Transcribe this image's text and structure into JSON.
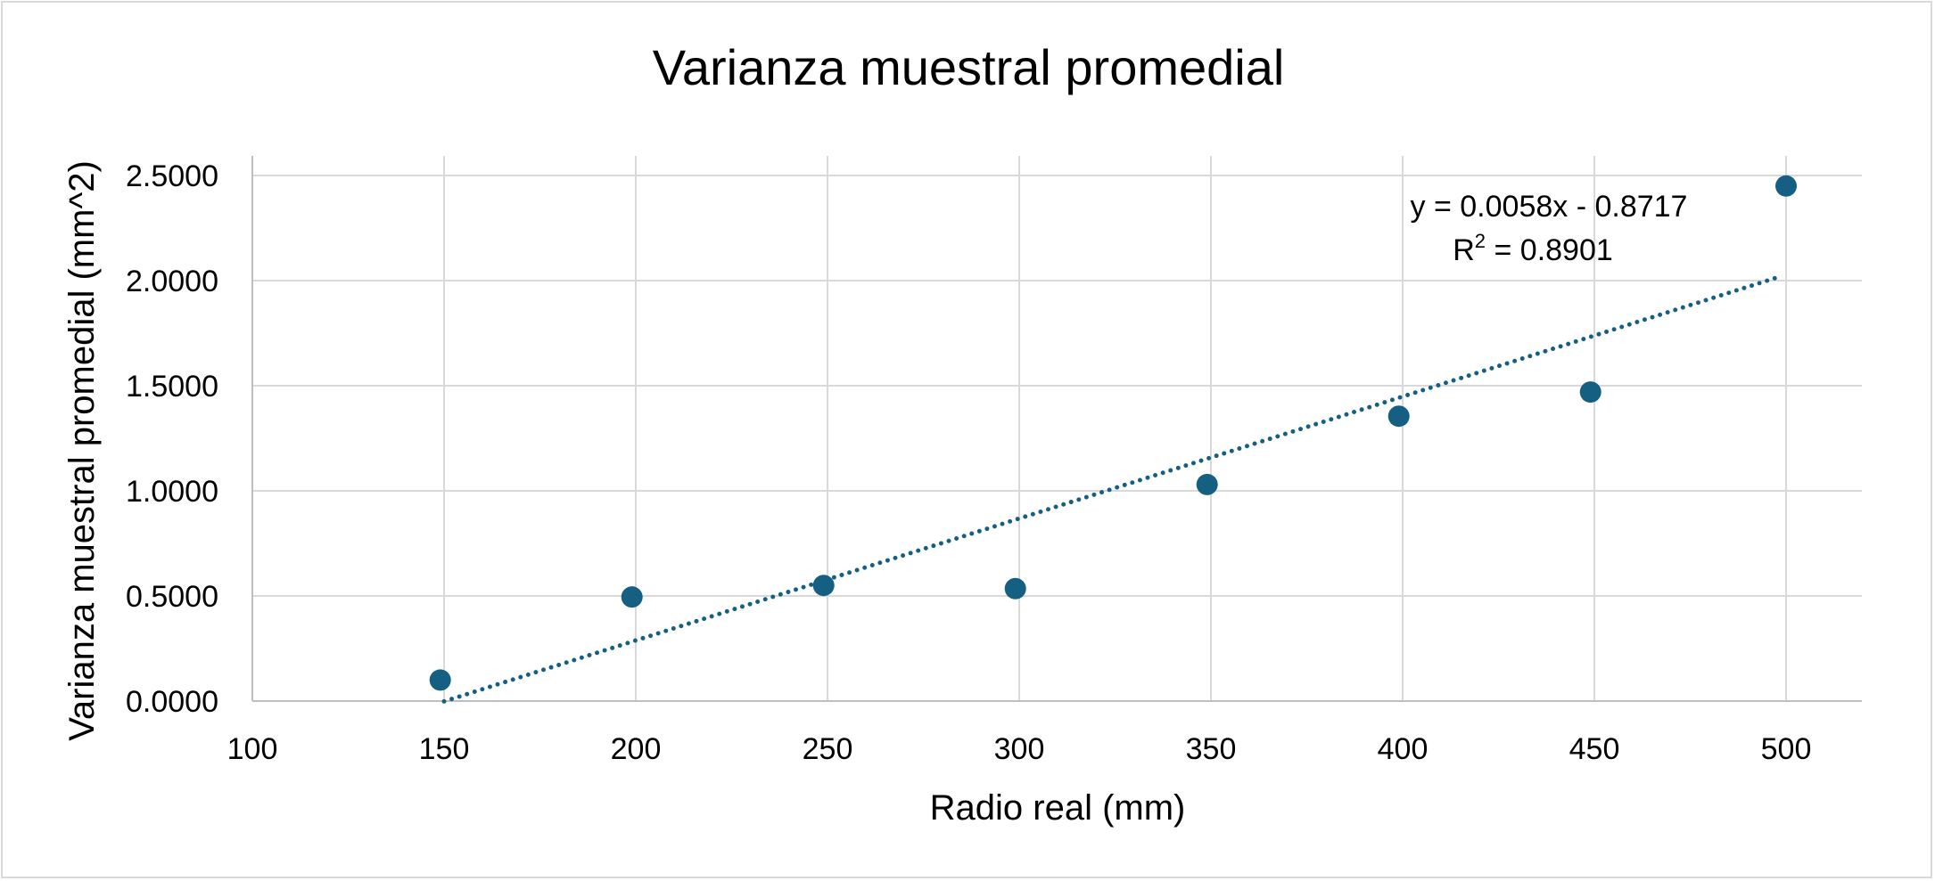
{
  "chart_data": {
    "type": "scatter",
    "title": "Varianza muestral promedial",
    "xlabel": "Radio real (mm)",
    "ylabel": "Varianza muestral promedial (mm^2)",
    "xlim": [
      100,
      520
    ],
    "ylim": [
      0,
      2.6
    ],
    "x_ticks": [
      "100",
      "150",
      "200",
      "250",
      "300",
      "350",
      "400",
      "450",
      "500"
    ],
    "x_tick_values": [
      100,
      150,
      200,
      250,
      300,
      350,
      400,
      450,
      500
    ],
    "y_ticks": [
      "0.0000",
      "0.5000",
      "1.0000",
      "1.5000",
      "2.0000",
      "2.5000"
    ],
    "y_tick_values": [
      0,
      0.5,
      1.0,
      1.5,
      2.0,
      2.5
    ],
    "grid": true,
    "series": [
      {
        "x": [
          149,
          199,
          249,
          299,
          349,
          399,
          449,
          500
        ],
        "y": [
          0.1,
          0.495,
          0.55,
          0.535,
          1.03,
          1.355,
          1.47,
          2.45
        ]
      }
    ],
    "trendline": {
      "type": "linear",
      "slope": 0.0058,
      "intercept": -0.8717,
      "x_range": [
        150,
        498
      ],
      "equation": "y = 0.0058x - 0.8717",
      "r2_prefix": "R",
      "r2_sup": "2",
      "r2_suffix": " = 0.8901"
    },
    "color": "#156082"
  }
}
